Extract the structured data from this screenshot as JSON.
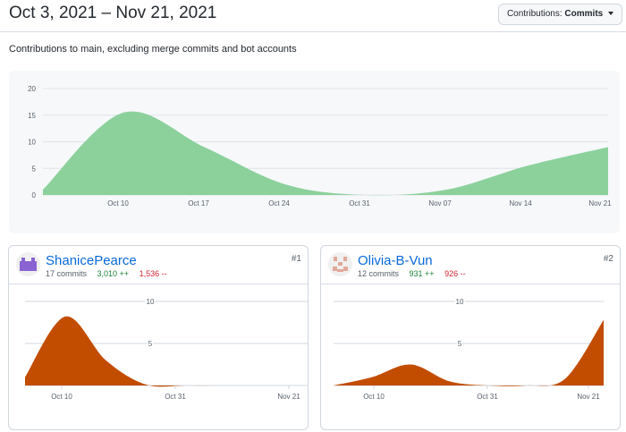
{
  "header": {
    "date_range": "Oct 3, 2021 – Nov 21, 2021",
    "contributions_label": "Contributions:",
    "contributions_value": "Commits"
  },
  "subtitle": "Contributions to main, excluding merge commits and bot accounts",
  "chart_data": [
    {
      "type": "area",
      "color": "#8cd19c",
      "x_ticks": [
        "Oct 10",
        "Oct 17",
        "Oct 24",
        "Oct 31",
        "Nov 07",
        "Nov 14",
        "Nov 21"
      ],
      "y_ticks": [
        0,
        5,
        10,
        15,
        20
      ],
      "ylim": [
        0,
        20
      ],
      "x": [
        "Oct 3",
        "Oct 10",
        "Oct 17",
        "Oct 24",
        "Oct 31",
        "Nov 7",
        "Nov 14",
        "Nov 21"
      ],
      "values": [
        1,
        15.5,
        9,
        2,
        0,
        1,
        5.5,
        9
      ]
    },
    {
      "type": "area",
      "color": "#c24d00",
      "x_ticks": [
        "Oct 10",
        "Oct 31",
        "Nov 21"
      ],
      "y_ticks": [
        5,
        10
      ],
      "ylim": [
        0,
        10
      ],
      "x": [
        "Oct 3",
        "Oct 10",
        "Oct 17",
        "Oct 24",
        "Oct 31",
        "Nov 7",
        "Nov 14",
        "Nov 21"
      ],
      "values": [
        1,
        8.2,
        3,
        0.1,
        0,
        0,
        0,
        0
      ]
    },
    {
      "type": "area",
      "color": "#c24d00",
      "x_ticks": [
        "Oct 10",
        "Oct 31",
        "Nov 21"
      ],
      "y_ticks": [
        5,
        10
      ],
      "ylim": [
        0,
        10
      ],
      "x": [
        "Oct 3",
        "Oct 10",
        "Oct 17",
        "Oct 24",
        "Oct 31",
        "Nov 7",
        "Nov 14",
        "Nov 21"
      ],
      "values": [
        0,
        1,
        2.5,
        0.5,
        0,
        0,
        0.8,
        7.8
      ]
    }
  ],
  "contributors": [
    {
      "name": "ShanicePearce",
      "rank": "#1",
      "commits": "17 commits",
      "additions": "3,010 ++",
      "deletions": "1,536 --",
      "avatar_icon": "purple-identicon"
    },
    {
      "name": "Olivia-B-Vun",
      "rank": "#2",
      "commits": "12 commits",
      "additions": "931 ++",
      "deletions": "926 --",
      "avatar_icon": "peach-identicon"
    }
  ]
}
